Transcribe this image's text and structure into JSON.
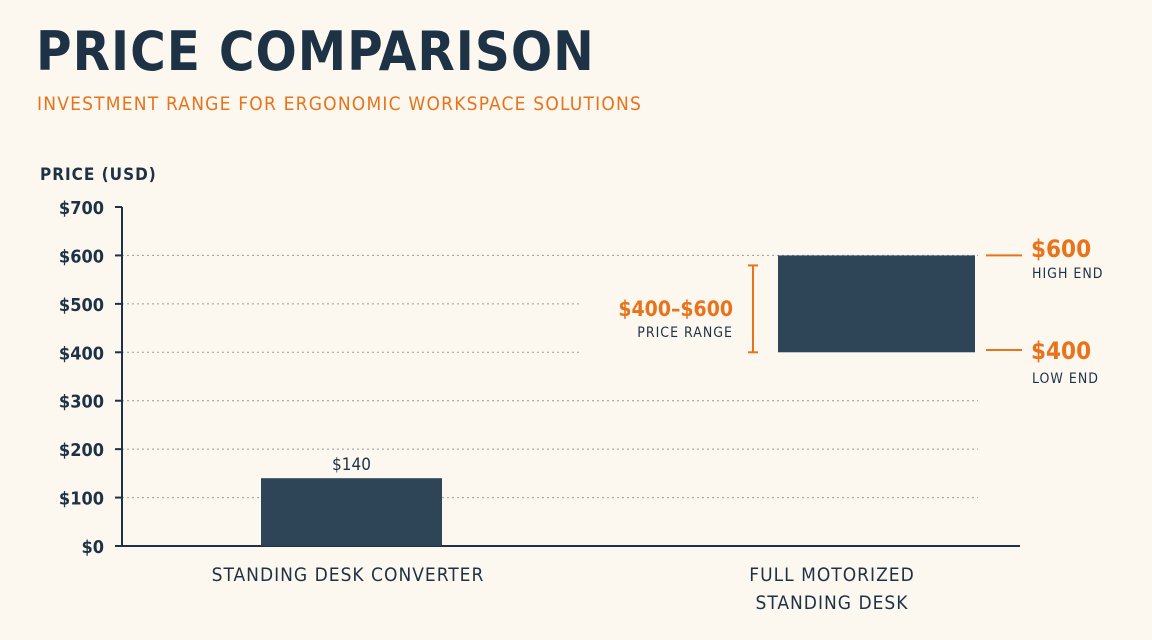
{
  "header": {
    "title": "PRICE COMPARISON",
    "subtitle": "INVESTMENT RANGE FOR ERGONOMIC WORKSPACE SOLUTIONS"
  },
  "colors": {
    "bar": "#2e4457",
    "accent": "#e8731b",
    "text": "#1e3246",
    "grid": "#9a9a9a",
    "background": "#fcf8f0"
  },
  "chart_data": {
    "type": "bar",
    "ylabel": "PRICE (USD)",
    "xlabel": "",
    "ylim": [
      0,
      700
    ],
    "yticks": [
      0,
      100,
      200,
      300,
      400,
      500,
      600,
      700
    ],
    "ytick_labels": [
      "$0",
      "$100",
      "$200",
      "$300",
      "$400",
      "$500",
      "$600",
      "$700"
    ],
    "grid": "dotted horizontal",
    "categories": [
      {
        "lines": [
          "STANDING DESK CONVERTER"
        ]
      },
      {
        "lines": [
          "FULL MOTORIZED",
          "STANDING DESK"
        ]
      }
    ],
    "bars": [
      {
        "low": 0,
        "high": 140,
        "label": "$140"
      },
      {
        "low": 400,
        "high": 600
      }
    ],
    "annotations": {
      "range": {
        "value": "$400–$600",
        "label": "PRICE RANGE"
      },
      "high": {
        "value": "$600",
        "label": "HIGH END"
      },
      "low": {
        "value": "$400",
        "label": "LOW END"
      }
    }
  }
}
